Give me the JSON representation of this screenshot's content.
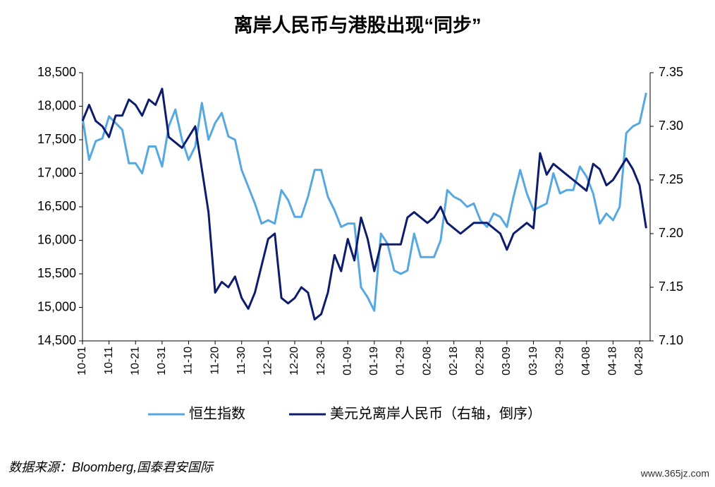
{
  "chart_data": {
    "type": "line",
    "title": "离岸人民币与港股出现“同步”",
    "source": "数据来源：Bloomberg,国泰君安国际",
    "watermark": "www.365jz.com",
    "categories": [
      "10-01",
      null,
      null,
      null,
      "10-11",
      null,
      null,
      null,
      "10-21",
      null,
      null,
      null,
      "10-31",
      null,
      null,
      null,
      "11-10",
      null,
      null,
      null,
      "11-20",
      null,
      null,
      null,
      "11-30",
      null,
      null,
      null,
      "12-10",
      null,
      null,
      null,
      "12-20",
      null,
      null,
      null,
      "12-30",
      null,
      null,
      null,
      "01-09",
      null,
      null,
      null,
      "01-19",
      null,
      null,
      null,
      "01-29",
      null,
      null,
      null,
      "02-08",
      null,
      null,
      null,
      "02-18",
      null,
      null,
      null,
      "02-28",
      null,
      null,
      null,
      "03-09",
      null,
      null,
      null,
      "03-19",
      null,
      null,
      null,
      "03-29",
      null,
      null,
      null,
      "04-08",
      null,
      null,
      null,
      "04-18",
      null,
      null,
      null,
      "04-28",
      null
    ],
    "series": [
      {
        "name": "恒生指数",
        "color": "#56a8e2",
        "values": [
          17830,
          17200,
          17480,
          17520,
          17850,
          17750,
          17650,
          17150,
          17150,
          17000,
          17400,
          17400,
          17100,
          17700,
          17950,
          17500,
          17200,
          17400,
          18050,
          17500,
          17750,
          17900,
          17550,
          17500,
          17050,
          16800,
          16550,
          16250,
          16300,
          16250,
          16750,
          16600,
          16350,
          16350,
          16650,
          17050,
          17050,
          16650,
          16450,
          16200,
          16250,
          16250,
          15300,
          15150,
          14950,
          16100,
          15950,
          15550,
          15500,
          15550,
          16100,
          15750,
          15750,
          15750,
          16000,
          16750,
          16650,
          16600,
          16500,
          16550,
          16300,
          16200,
          16400,
          16350,
          16200,
          16650,
          17050,
          16700,
          16450,
          16500,
          16550,
          17000,
          16700,
          16750,
          16750,
          17100,
          16950,
          16700,
          16250,
          16400,
          16300,
          16500,
          17600,
          17700,
          17750,
          18200
        ]
      },
      {
        "name": "美元兑离岸人民币（右轴，倒序）",
        "color": "#0d1d6e",
        "axis": "y2",
        "values": [
          7.305,
          7.32,
          7.305,
          7.3,
          7.29,
          7.31,
          7.31,
          7.325,
          7.32,
          7.31,
          7.325,
          7.32,
          7.335,
          7.29,
          7.285,
          7.28,
          7.29,
          7.3,
          7.26,
          7.22,
          7.145,
          7.155,
          7.15,
          7.16,
          7.14,
          7.13,
          7.145,
          7.17,
          7.195,
          7.2,
          7.14,
          7.135,
          7.14,
          7.15,
          7.145,
          7.12,
          7.125,
          7.145,
          7.18,
          7.165,
          7.195,
          7.175,
          7.215,
          7.195,
          7.165,
          7.19,
          7.19,
          7.19,
          7.19,
          7.215,
          7.22,
          7.215,
          7.21,
          7.215,
          7.225,
          7.21,
          7.205,
          7.2,
          7.205,
          7.21,
          7.21,
          7.21,
          7.205,
          7.2,
          7.185,
          7.2,
          7.205,
          7.21,
          7.205,
          7.275,
          7.255,
          7.265,
          7.26,
          7.255,
          7.25,
          7.245,
          7.24,
          7.265,
          7.26,
          7.245,
          7.25,
          7.26,
          7.27,
          7.26,
          7.245,
          7.205
        ]
      }
    ],
    "ylim": [
      14500,
      18500
    ],
    "yticks": [
      {
        "value": 14500,
        "label": "14,500"
      },
      {
        "value": 15000,
        "label": "15,000"
      },
      {
        "value": 15500,
        "label": "15,500"
      },
      {
        "value": 16000,
        "label": "16,000"
      },
      {
        "value": 16500,
        "label": "16,500"
      },
      {
        "value": 17000,
        "label": "17,000"
      },
      {
        "value": 17500,
        "label": "17,500"
      },
      {
        "value": 18000,
        "label": "18,000"
      },
      {
        "value": 18500,
        "label": "18,500"
      }
    ],
    "y2lim": [
      7.1,
      7.35
    ],
    "y2ticks": [
      {
        "value": 7.1,
        "label": "7.10"
      },
      7.15,
      {
        "value": 7.2,
        "label": "7.20"
      },
      7.25,
      {
        "value": 7.3,
        "label": "7.30"
      },
      7.35
    ],
    "grid": false,
    "legend": "bottom"
  }
}
